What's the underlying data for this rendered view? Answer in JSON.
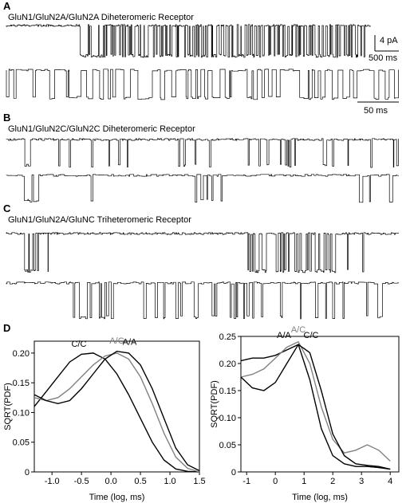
{
  "figure": {
    "panel_a": {
      "label": "A",
      "title": "GluN1/GluN2A/GluN2A Diheteromeric Receptor",
      "scale_current": "4 pA",
      "scale_time_long": "500 ms",
      "scale_time_short": "50 ms"
    },
    "panel_b": {
      "label": "B",
      "title": "GluN1/GluN2C/GluN2C Diheteromeric Receptor"
    },
    "panel_c": {
      "label": "C",
      "title": "GluN1/GluN2A/GluNC Triheteromeric Receptor"
    },
    "panel_d": {
      "label": "D"
    }
  },
  "chart_data": [
    {
      "type": "line",
      "xlabel": "Time (log, ms)",
      "ylabel": "SQRT(PDF)",
      "x": [
        -1.3,
        -1.1,
        -0.9,
        -0.7,
        -0.5,
        -0.3,
        -0.1,
        0.1,
        0.3,
        0.5,
        0.7,
        0.9,
        1.1,
        1.3,
        1.5
      ],
      "series": [
        {
          "name": "C/C",
          "color": "#000000",
          "values": [
            0.11,
            0.135,
            0.16,
            0.185,
            0.198,
            0.2,
            0.19,
            0.165,
            0.13,
            0.09,
            0.05,
            0.02,
            0.005,
            0.001,
            0
          ]
        },
        {
          "name": "A/C",
          "color": "#808080",
          "values": [
            0.125,
            0.12,
            0.125,
            0.14,
            0.16,
            0.18,
            0.195,
            0.2,
            0.19,
            0.16,
            0.115,
            0.065,
            0.025,
            0.006,
            0
          ]
        },
        {
          "name": "A/A",
          "color": "#000000",
          "values": [
            0.13,
            0.12,
            0.115,
            0.12,
            0.14,
            0.165,
            0.19,
            0.203,
            0.2,
            0.18,
            0.14,
            0.09,
            0.04,
            0.012,
            0.002
          ]
        }
      ],
      "xlim": [
        -1.3,
        1.5
      ],
      "xticks": [
        {
          "value": -1,
          "label": "-1.0"
        },
        -0.5,
        {
          "value": 0,
          "label": "0.0"
        },
        0.5,
        {
          "value": 1,
          "label": "1.0"
        },
        1.5
      ],
      "ylim": [
        0,
        0.22
      ],
      "yticks": [
        0,
        0.05,
        {
          "value": 0.1,
          "label": "0.10"
        },
        0.15,
        {
          "value": 0.2,
          "label": "0.20"
        }
      ]
    },
    {
      "type": "line",
      "xlabel": "Time (log, ms)",
      "ylabel": "SQRT(PDF)",
      "x": [
        -1.2,
        -0.8,
        -0.4,
        0,
        0.4,
        0.8,
        1.2,
        1.6,
        2.0,
        2.4,
        2.8,
        3.2,
        3.6,
        4.0
      ],
      "series": [
        {
          "name": "A/A",
          "color": "#000000",
          "values": [
            0.205,
            0.21,
            0.21,
            0.215,
            0.225,
            0.235,
            0.17,
            0.08,
            0.03,
            0.015,
            0.01,
            0.01,
            0.008,
            0.005
          ]
        },
        {
          "name": "A/C",
          "color": "#808080",
          "values": [
            0.175,
            0.18,
            0.19,
            0.21,
            0.23,
            0.24,
            0.2,
            0.12,
            0.06,
            0.035,
            0.04,
            0.05,
            0.04,
            0.02
          ]
        },
        {
          "name": "C/C",
          "color": "#000000",
          "values": [
            0.175,
            0.155,
            0.15,
            0.165,
            0.2,
            0.235,
            0.22,
            0.15,
            0.07,
            0.03,
            0.015,
            0.012,
            0.01,
            0.005
          ]
        }
      ],
      "xlim": [
        -1.2,
        4.3
      ],
      "xticks": [
        -1,
        0,
        1,
        2,
        3,
        4
      ],
      "ylim": [
        0,
        0.25
      ],
      "yticks": [
        0,
        0.05,
        {
          "value": 0.1,
          "label": "0.10"
        },
        0.15,
        {
          "value": 0.2,
          "label": "0.20"
        },
        0.25
      ]
    }
  ]
}
